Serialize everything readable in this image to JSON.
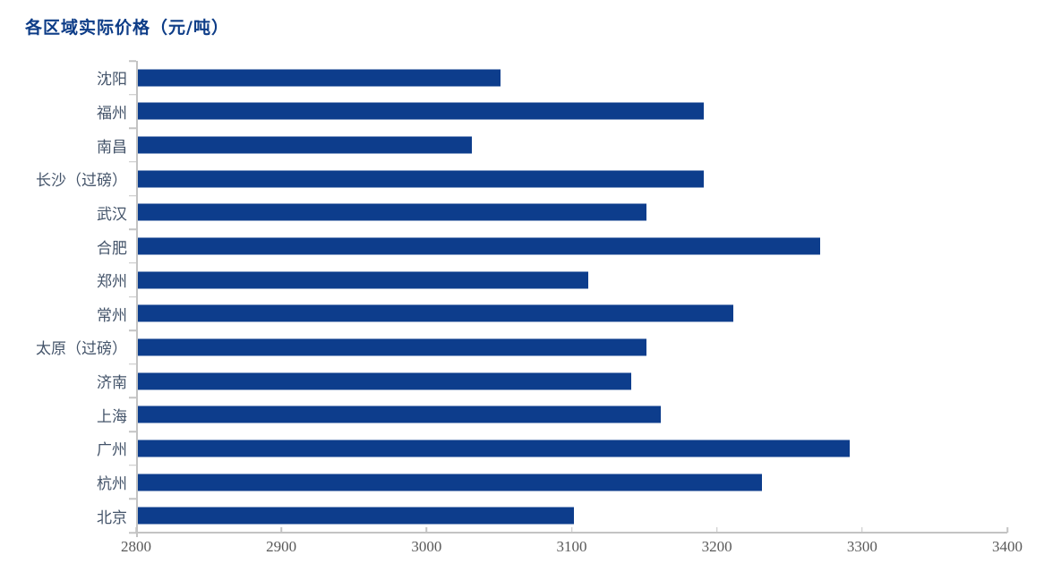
{
  "chart_data": {
    "type": "bar",
    "orientation": "horizontal",
    "title": "各区域实际价格（元/吨）",
    "categories": [
      "沈阳",
      "福州",
      "南昌",
      "长沙（过磅）",
      "武汉",
      "合肥",
      "郑州",
      "常州",
      "太原（过磅）",
      "济南",
      "上海",
      "广州",
      "杭州",
      "北京"
    ],
    "values": [
      3050,
      3190,
      3030,
      3190,
      3150,
      3270,
      3110,
      3210,
      3150,
      3140,
      3160,
      3290,
      3230,
      3100
    ],
    "xlabel": "",
    "ylabel": "",
    "xlim": [
      2800,
      3400
    ],
    "x_ticks": [
      2800,
      2900,
      3000,
      3100,
      3200,
      3300,
      3400
    ],
    "grid": false,
    "legend": false,
    "data_labels": false,
    "colors": {
      "bar": "#0d3d8c",
      "title": "#0d3c87",
      "category_label": "#44546a",
      "tick_label": "#595959",
      "axis_line": "#c3c3c3"
    }
  }
}
